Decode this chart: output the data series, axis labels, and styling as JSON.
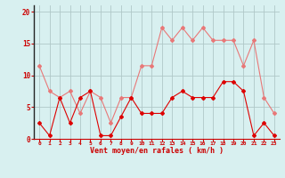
{
  "x": [
    0,
    1,
    2,
    3,
    4,
    5,
    6,
    7,
    8,
    9,
    10,
    11,
    12,
    13,
    14,
    15,
    16,
    17,
    18,
    19,
    20,
    21,
    22,
    23
  ],
  "wind_avg": [
    2.5,
    0.5,
    6.5,
    2.5,
    6.5,
    7.5,
    0.5,
    0.5,
    3.5,
    6.5,
    4.0,
    4.0,
    4.0,
    6.5,
    7.5,
    6.5,
    6.5,
    6.5,
    9.0,
    9.0,
    7.5,
    0.5,
    2.5,
    0.5
  ],
  "wind_gust": [
    11.5,
    7.5,
    6.5,
    7.5,
    4.0,
    7.5,
    6.5,
    2.5,
    6.5,
    6.5,
    11.5,
    11.5,
    17.5,
    15.5,
    17.5,
    15.5,
    17.5,
    15.5,
    15.5,
    15.5,
    11.5,
    15.5,
    6.5,
    4.0
  ],
  "avg_color": "#e87878",
  "gust_color": "#dd0000",
  "bg_color": "#d8f0f0",
  "grid_color": "#b0c8c8",
  "axis_color": "#cc0000",
  "xlabel": "Vent moyen/en rafales ( km/h )",
  "ylim": [
    0,
    21
  ],
  "yticks": [
    0,
    5,
    10,
    15,
    20
  ],
  "xlim": [
    -0.5,
    23.5
  ],
  "figsize": [
    3.2,
    2.0
  ],
  "dpi": 100
}
